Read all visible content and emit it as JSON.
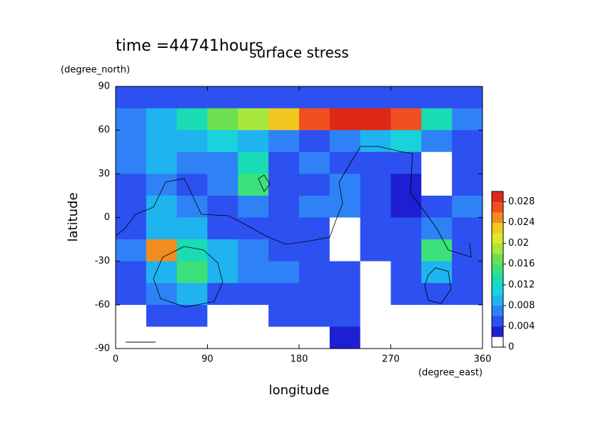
{
  "chart_data": {
    "type": "heatmap",
    "title": "surface stress",
    "annotation": "time =44741hours",
    "x_label": "longitude",
    "x_units": "(degree_east)",
    "y_label": "latitude",
    "y_units": "(degree_north)",
    "xlim": [
      0,
      360
    ],
    "xticks": [
      0,
      90,
      180,
      270,
      360
    ],
    "ylim": [
      -90,
      90
    ],
    "yticks": [
      -90,
      -60,
      -30,
      0,
      30,
      60,
      90
    ],
    "x": [
      15,
      45,
      75,
      105,
      135,
      165,
      195,
      225,
      255,
      285,
      315,
      345
    ],
    "y": [
      82.5,
      67.5,
      52.5,
      37.5,
      22.5,
      7.5,
      -7.5,
      -22.5,
      -37.5,
      -52.5,
      -67.5,
      -82.5
    ],
    "z": [
      [
        0.004,
        0.004,
        0.004,
        0.004,
        0.004,
        0.004,
        0.004,
        0.005,
        0.004,
        0.004,
        0.004,
        0.004
      ],
      [
        0.006,
        0.008,
        0.012,
        0.016,
        0.018,
        0.022,
        0.026,
        0.03,
        0.03,
        0.026,
        0.012,
        0.006
      ],
      [
        0.006,
        0.008,
        0.008,
        0.01,
        0.008,
        0.006,
        0.004,
        0.006,
        0.008,
        0.01,
        0.006,
        0.004
      ],
      [
        0.006,
        0.008,
        0.006,
        0.006,
        0.012,
        0.004,
        0.006,
        0.004,
        0.004,
        0.004,
        0.001,
        0.004
      ],
      [
        0.004,
        0.006,
        0.004,
        0.006,
        0.014,
        0.004,
        0.004,
        0.006,
        0.004,
        0.003,
        0.001,
        0.004
      ],
      [
        0.004,
        0.008,
        0.006,
        0.004,
        0.006,
        0.004,
        0.006,
        0.006,
        0.004,
        0.003,
        0.004,
        0.006
      ],
      [
        0.004,
        0.008,
        0.008,
        0.004,
        0.004,
        0.004,
        0.004,
        0.001,
        0.004,
        0.004,
        0.006,
        0.004
      ],
      [
        0.006,
        0.024,
        0.012,
        0.008,
        0.006,
        0.004,
        0.004,
        0.001,
        0.004,
        0.004,
        0.014,
        0.004
      ],
      [
        0.004,
        0.008,
        0.014,
        0.008,
        0.006,
        0.006,
        0.004,
        0.004,
        0.001,
        0.004,
        0.008,
        0.004
      ],
      [
        0.004,
        0.006,
        0.008,
        0.004,
        0.004,
        0.004,
        0.004,
        0.004,
        0.001,
        0.004,
        0.004,
        0.004
      ],
      [
        0.001,
        0.004,
        0.004,
        0.001,
        0.001,
        0.004,
        0.004,
        0.004,
        0.001,
        0.001,
        0.001,
        0.001
      ],
      [
        0.001,
        0.001,
        0.001,
        0.001,
        0.001,
        0.001,
        0.001,
        0.003,
        0.001,
        0.001,
        0.001,
        0.001
      ]
    ],
    "levels": [
      0,
      0.002,
      0.004,
      0.006,
      0.008,
      0.01,
      0.012,
      0.014,
      0.016,
      0.018,
      0.02,
      0.022,
      0.024,
      0.026,
      0.028,
      0.03
    ],
    "colors": [
      "#ffffff",
      "#1e1ed2",
      "#2d50f0",
      "#2f82f5",
      "#1fb4f0",
      "#18d2dc",
      "#19dcb4",
      "#3ce07a",
      "#6ee050",
      "#a8e83c",
      "#e0e828",
      "#f0c820",
      "#f08c20",
      "#f05020",
      "#e02818"
    ],
    "colorbar_ticks": [
      0,
      0.004,
      0.008,
      0.012,
      0.016,
      0.02,
      0.024,
      0.028
    ]
  }
}
